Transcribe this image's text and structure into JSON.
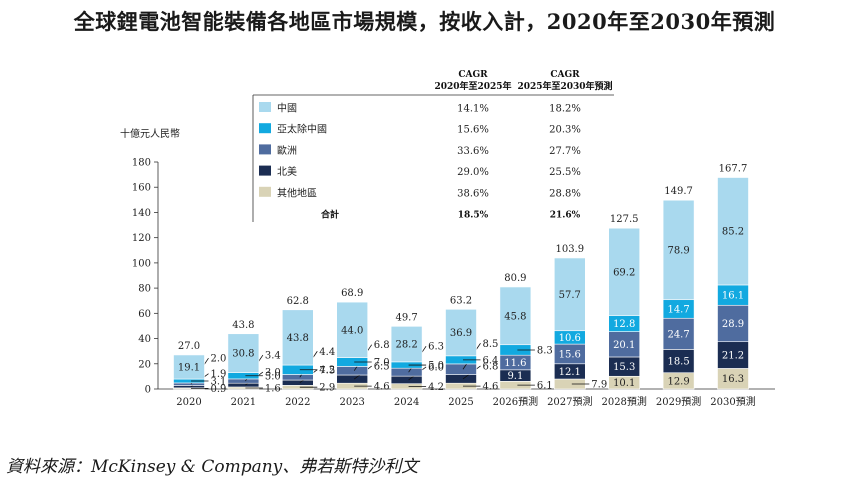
{
  "header": {
    "title": "全球鋰電池智能裝備各地區市場規模，按收入計，2020年至2030年預測"
  },
  "footer": {
    "source": "資料來源：McKinsey & Company、弗若斯特沙利文"
  },
  "colors": {
    "china": "#a9d9ee",
    "apac": "#12a9e0",
    "europe": "#4f6c9f",
    "north_america": "#1b2d52",
    "others": "#d9d3b6"
  },
  "chart_data": {
    "type": "bar",
    "stacked": true,
    "ylabel": "十億元人民幣",
    "ylim": [
      0,
      180
    ],
    "yticks": [
      0,
      20,
      40,
      60,
      80,
      100,
      120,
      140,
      160,
      180
    ],
    "categories": [
      "2020",
      "2021",
      "2022",
      "2023",
      "2024",
      "2025",
      "2026預測",
      "2027預測",
      "2028預測",
      "2029預測",
      "2030預測"
    ],
    "series": [
      {
        "name": "其他地區",
        "key": "others",
        "values": [
          0.9,
          1.6,
          2.9,
          4.6,
          4.2,
          4.6,
          6.1,
          7.9,
          10.1,
          12.9,
          16.3
        ],
        "labels": [
          "0.9",
          "1.6",
          "2.9",
          "4.6",
          "4.2",
          "4.6",
          "6.1",
          "7.9",
          "10.1",
          "12.9",
          "16.3"
        ]
      },
      {
        "name": "北美",
        "key": "north_america",
        "values": [
          1.9,
          3.0,
          4.2,
          6.5,
          6.0,
          6.8,
          9.1,
          12.1,
          15.3,
          18.5,
          21.2
        ],
        "labels": [
          "1.9",
          "3.0",
          "4.2",
          "6.5",
          "6.0",
          "6.8",
          "9.1",
          "12.1",
          "15.3",
          "18.5",
          "21.2"
        ]
      },
      {
        "name": "歐洲",
        "key": "europe",
        "values": [
          2.0,
          3.4,
          4.4,
          6.8,
          6.3,
          8.5,
          11.6,
          15.6,
          20.1,
          24.7,
          28.9
        ],
        "labels": [
          "2.0",
          "3.4",
          "4.4",
          "6.8",
          "6.3",
          "8.5",
          "11.6",
          "15.6",
          "20.1",
          "24.7",
          "28.9"
        ]
      },
      {
        "name": "亞太除中國",
        "key": "apac",
        "values": [
          3.1,
          5.0,
          7.5,
          7.0,
          5.0,
          6.4,
          8.3,
          10.6,
          12.8,
          14.7,
          16.1
        ],
        "labels": [
          "3.1",
          "5.0",
          "7.5",
          "7.0",
          "5.0",
          "6.4",
          "8.3",
          "10.6",
          "12.8",
          "14.7",
          "16.1"
        ]
      },
      {
        "name": "中國",
        "key": "china",
        "values": [
          19.1,
          30.8,
          43.8,
          44.0,
          28.2,
          36.9,
          45.8,
          57.7,
          69.2,
          78.9,
          85.2
        ],
        "labels": [
          "19.1",
          "30.8",
          "43.8",
          "44.0",
          "28.2",
          "36.9",
          "45.8",
          "57.7",
          "69.2",
          "78.9",
          "85.2"
        ]
      }
    ],
    "totals": [
      27.0,
      43.8,
      62.8,
      68.9,
      49.7,
      63.2,
      80.9,
      103.9,
      127.5,
      149.7,
      167.7
    ],
    "total_labels": [
      "27.0",
      "43.8",
      "62.8",
      "68.9",
      "49.7",
      "63.2",
      "80.9",
      "103.9",
      "127.5",
      "149.7",
      "167.7"
    ],
    "legend": {
      "placement": "top-left",
      "col1_header": "CAGR\n2020年至2025年",
      "col2_header": "CAGR\n2025年至2030年預測",
      "rows": [
        {
          "name": "中國",
          "key": "china",
          "cagr1": "14.1%",
          "cagr2": "18.2%"
        },
        {
          "name": "亞太除中國",
          "key": "apac",
          "cagr1": "15.6%",
          "cagr2": "20.3%"
        },
        {
          "name": "歐洲",
          "key": "europe",
          "cagr1": "33.6%",
          "cagr2": "27.7%"
        },
        {
          "name": "北美",
          "key": "north_america",
          "cagr1": "29.0%",
          "cagr2": "25.5%"
        },
        {
          "name": "其他地區",
          "key": "others",
          "cagr1": "38.6%",
          "cagr2": "28.8%"
        }
      ],
      "total_row": {
        "name": "合計",
        "cagr1": "18.5%",
        "cagr2": "21.6%"
      }
    }
  }
}
